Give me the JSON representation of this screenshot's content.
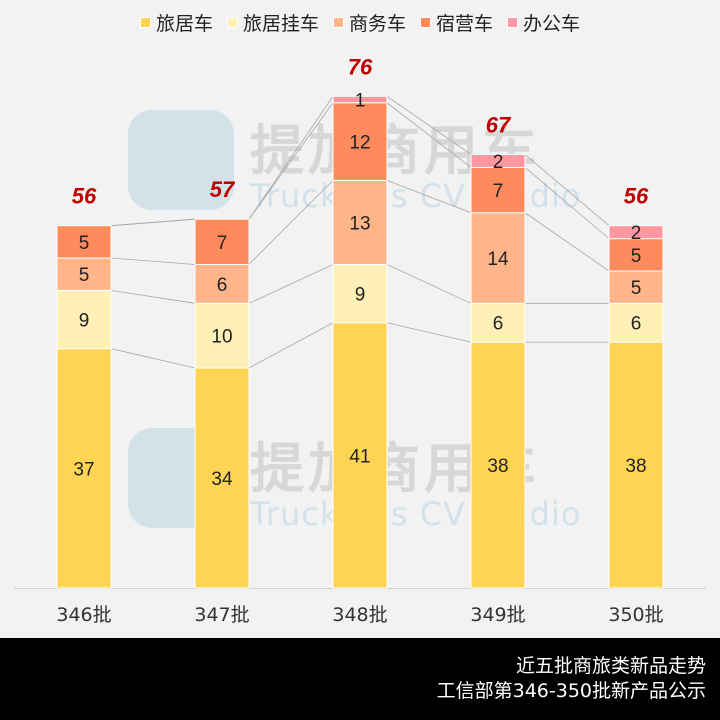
{
  "chart_data": {
    "type": "bar",
    "stacked": true,
    "categories": [
      "346批",
      "347批",
      "348批",
      "349批",
      "350批"
    ],
    "series": [
      {
        "name": "旅居车",
        "color": "#ffd452",
        "values": [
          37,
          34,
          41,
          38,
          38
        ]
      },
      {
        "name": "旅居挂车",
        "color": "#fff0b8",
        "values": [
          9,
          10,
          9,
          6,
          6
        ]
      },
      {
        "name": "商务车",
        "color": "#ffb589",
        "values": [
          5,
          6,
          13,
          14,
          5
        ]
      },
      {
        "name": "宿营车",
        "color": "#ff8a5c",
        "values": [
          5,
          7,
          12,
          7,
          5
        ]
      },
      {
        "name": "办公车",
        "color": "#ff96a0",
        "values": [
          0,
          0,
          1,
          2,
          2
        ]
      }
    ],
    "totals": [
      56,
      57,
      76,
      67,
      56
    ],
    "total_color": "#c00000",
    "legend_position": "top",
    "grid": false,
    "connector_lines": true
  },
  "watermark": {
    "cn": "提加商用车",
    "en": "TruckPlus CV studio"
  },
  "footer": {
    "line1": "近五批商旅类新品走势",
    "line2": "工信部第346-350批新产品公示"
  }
}
